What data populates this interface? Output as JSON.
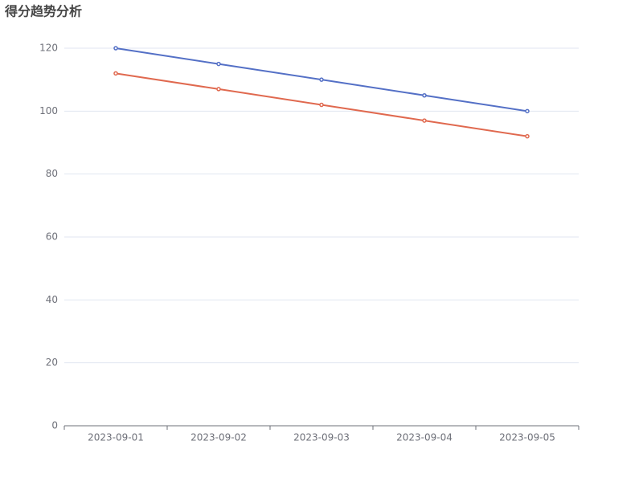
{
  "chart_data": {
    "type": "line",
    "title": "得分趋势分析",
    "categories": [
      "2023-09-01",
      "2023-09-02",
      "2023-09-03",
      "2023-09-04",
      "2023-09-05"
    ],
    "series": [
      {
        "color": "#5470c6",
        "values": [
          120,
          115,
          110,
          105,
          100
        ]
      },
      {
        "color": "#e0694f",
        "values": [
          112,
          107,
          102,
          97,
          92
        ]
      }
    ],
    "ylim": [
      0,
      120
    ],
    "yticks": [
      0,
      20,
      40,
      60,
      80,
      100,
      120
    ],
    "grid": true
  }
}
